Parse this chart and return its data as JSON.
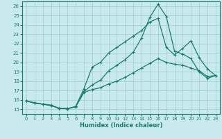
{
  "xlabel": "Humidex (Indice chaleur)",
  "xlim": [
    -0.5,
    23.5
  ],
  "ylim": [
    14.5,
    26.5
  ],
  "xticks": [
    0,
    1,
    2,
    3,
    4,
    5,
    6,
    7,
    8,
    9,
    10,
    11,
    12,
    13,
    14,
    15,
    16,
    17,
    18,
    19,
    20,
    21,
    22,
    23
  ],
  "yticks": [
    15,
    16,
    17,
    18,
    19,
    20,
    21,
    22,
    23,
    24,
    25,
    26
  ],
  "bg_color": "#c8eaec",
  "line_color": "#1a7a6e",
  "grid_color": "#a0cccc",
  "line1_x": [
    0,
    1,
    2,
    3,
    4,
    5,
    6,
    7,
    8,
    9,
    10,
    11,
    12,
    13,
    14,
    15,
    16,
    17,
    18,
    19,
    20,
    21,
    22,
    23
  ],
  "line1_y": [
    15.9,
    15.7,
    15.55,
    15.45,
    15.1,
    15.1,
    15.25,
    16.8,
    17.1,
    17.3,
    17.7,
    18.0,
    18.4,
    18.9,
    19.4,
    19.9,
    20.4,
    20.0,
    19.8,
    19.7,
    19.4,
    19.1,
    18.5,
    18.6
  ],
  "line2_x": [
    0,
    1,
    2,
    3,
    4,
    5,
    6,
    7,
    8,
    9,
    10,
    11,
    12,
    13,
    14,
    15,
    16,
    17,
    18,
    19,
    20,
    21,
    22,
    23
  ],
  "line2_y": [
    15.9,
    15.65,
    15.55,
    15.4,
    15.1,
    15.05,
    15.3,
    17.2,
    19.5,
    20.0,
    21.0,
    21.6,
    22.2,
    22.8,
    23.4,
    24.3,
    24.7,
    21.6,
    20.8,
    21.5,
    22.3,
    20.5,
    19.3,
    18.6
  ],
  "line3_x": [
    0,
    1,
    2,
    3,
    4,
    5,
    6,
    7,
    8,
    9,
    10,
    11,
    12,
    13,
    14,
    15,
    16,
    17,
    18,
    19,
    20,
    21,
    22,
    23
  ],
  "line3_y": [
    15.9,
    15.65,
    15.55,
    15.4,
    15.1,
    15.05,
    15.3,
    16.9,
    17.6,
    18.1,
    19.1,
    19.7,
    20.3,
    21.1,
    22.6,
    24.8,
    26.2,
    24.9,
    21.2,
    20.9,
    20.4,
    19.0,
    18.3,
    18.6
  ]
}
